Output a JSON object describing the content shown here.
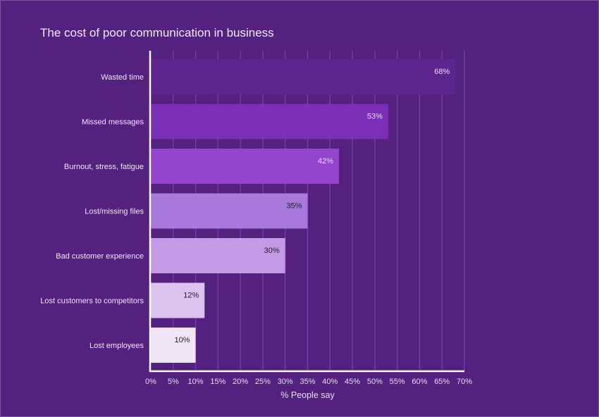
{
  "chart_data": {
    "type": "bar",
    "orientation": "horizontal",
    "title": "The cost of poor communication in business",
    "xlabel": "% People say",
    "ylabel": "",
    "categories": [
      "Wasted time",
      "Missed messages",
      "Burnout, stress, fatigue",
      "Lost/missing files",
      "Bad customer experience",
      "Lost customers to competitors",
      "Lost employees"
    ],
    "values": [
      68,
      53,
      42,
      35,
      30,
      12,
      10
    ],
    "data_labels": [
      "68%",
      "53%",
      "42%",
      "35%",
      "30%",
      "12%",
      "10%"
    ],
    "xlim": [
      0,
      70
    ],
    "xticks": [
      0,
      5,
      10,
      15,
      20,
      25,
      30,
      35,
      40,
      45,
      50,
      55,
      60,
      65,
      70
    ],
    "xtick_labels": [
      "0%",
      "5%",
      "10%",
      "15%",
      "20%",
      "25%",
      "30%",
      "35%",
      "40%",
      "45%",
      "50%",
      "55%",
      "60%",
      "65%",
      "70%"
    ],
    "grid": "vertical",
    "legend": "none",
    "colors": [
      "#5e258f",
      "#7a2fb8",
      "#9345d0",
      "#a779dc",
      "#c299e4",
      "#dbc3ee",
      "#f1e6f8"
    ],
    "label_colors": [
      "#e8dcf4",
      "#e8dcf4",
      "#e8dcf4",
      "#222222",
      "#222222",
      "#222222",
      "#222222"
    ],
    "background": "#55217f"
  }
}
